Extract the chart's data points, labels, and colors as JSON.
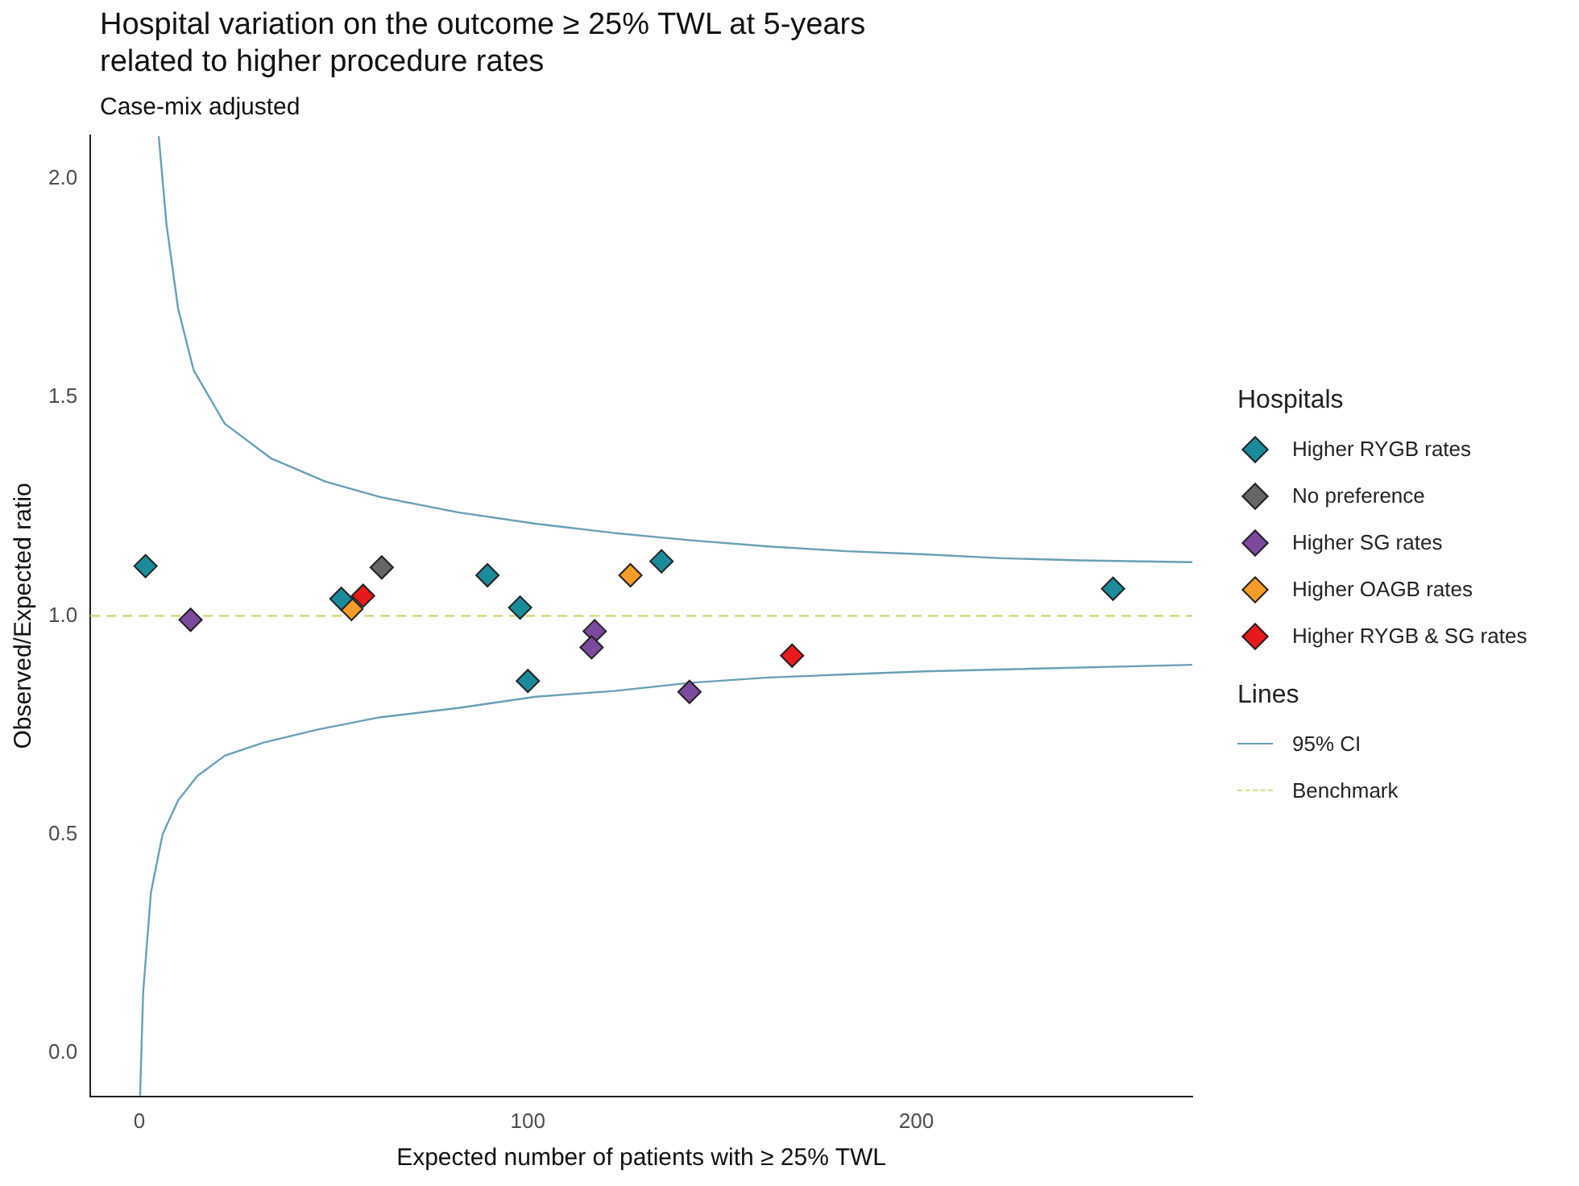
{
  "chart_data": {
    "type": "scatter",
    "title": "Hospital variation on the outcome ≥ 25% TWL at 5-years\nrelated to higher procedure rates",
    "subtitle": "Case-mix adjusted",
    "xlabel": "Expected number of patients with ≥ 25% TWL",
    "ylabel": "Observed/Expected ratio",
    "legend_title": "Hospitals",
    "annotations": [
      "Lines"
    ],
    "xlim": [
      -12.6,
      271
    ],
    "xticks": [
      0,
      100,
      200
    ],
    "ylim": [
      -0.1,
      2.1
    ],
    "yticks": [
      {
        "value": 0,
        "label": "0.0"
      },
      {
        "value": 0.5,
        "label": "0.5"
      },
      {
        "value": 1,
        "label": "1.0"
      },
      {
        "value": 1.5,
        "label": "1.5"
      },
      {
        "value": 2,
        "label": "2.0"
      }
    ],
    "grid": false,
    "legend": "right",
    "marker": "diamond",
    "ref_lines": [
      {
        "axis": "y",
        "value": 1,
        "label": "Benchmark",
        "color": "#d9d98a",
        "line_style": "dashed"
      }
    ],
    "series": [
      {
        "name": "Higher RYGB rates",
        "color": "#1b8a99",
        "x": [
          1.6,
          52,
          89.6,
          98,
          100,
          134.4,
          250.6
        ],
        "values": [
          1.114,
          1.039,
          1.093,
          1.019,
          0.851,
          1.125,
          1.062
        ]
      },
      {
        "name": "No preference",
        "color": "#666666",
        "x": [
          62.4
        ],
        "values": [
          1.111
        ]
      },
      {
        "name": "Higher SG rates",
        "color": "#7b4a9e",
        "x": [
          13.2,
          117.2,
          116.4,
          141.6
        ],
        "values": [
          0.991,
          0.965,
          0.928,
          0.826
        ]
      },
      {
        "name": "Higher OAGB rates",
        "color": "#f39c2c",
        "x": [
          54.6,
          126.4
        ],
        "values": [
          1.016,
          1.093
        ]
      },
      {
        "name": "Higher RYGB & SG rates",
        "color": "#e8191c",
        "x": [
          57.6,
          168
        ],
        "values": [
          1.046,
          0.909
        ]
      },
      {
        "name": "95% CI",
        "type": "line",
        "marker": "none",
        "line_style": "solid",
        "color": "#6a9fb5",
        "x": [
          5,
          7,
          10,
          14,
          22,
          34,
          48,
          62,
          82,
          102,
          122,
          142,
          162,
          182,
          202,
          222,
          242,
          271
        ],
        "values": [
          2.098,
          1.896,
          1.703,
          1.562,
          1.44,
          1.36,
          1.307,
          1.272,
          1.237,
          1.211,
          1.19,
          1.173,
          1.159,
          1.148,
          1.141,
          1.132,
          1.127,
          1.123
        ]
      },
      {
        "type": "line",
        "marker": "none",
        "line_style": "solid",
        "color": "#6a9fb5",
        "x": [
          0.2,
          1,
          3,
          6,
          10,
          15,
          22,
          32,
          46,
          62,
          82,
          102,
          122,
          142,
          162,
          182,
          202,
          271
        ],
        "values": [
          -0.098,
          0.139,
          0.367,
          0.5,
          0.578,
          0.634,
          0.68,
          0.71,
          0.74,
          0.768,
          0.789,
          0.815,
          0.828,
          0.847,
          0.859,
          0.866,
          0.873,
          0.888
        ]
      }
    ]
  }
}
